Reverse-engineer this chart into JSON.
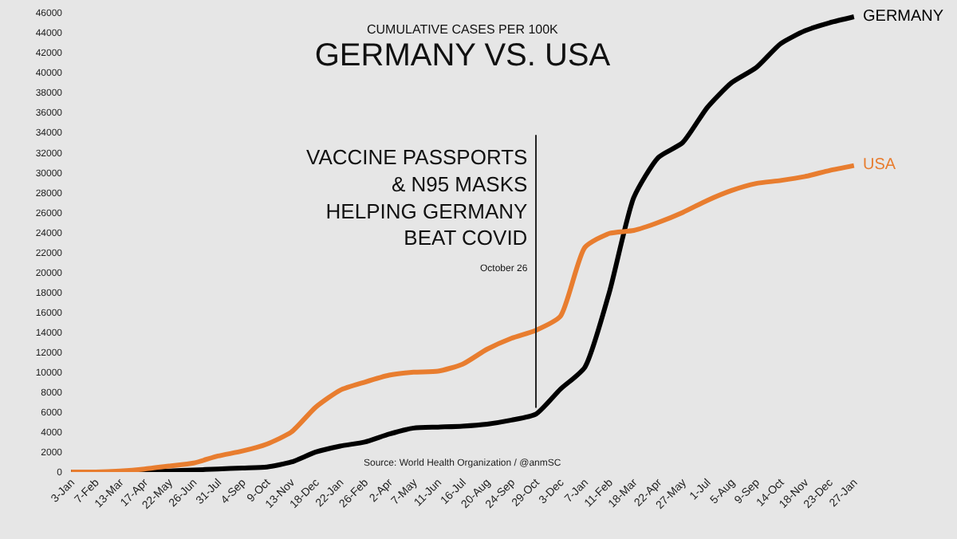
{
  "chart_data": {
    "type": "line",
    "title": "GERMANY VS. USA",
    "subtitle": "CUMULATIVE CASES PER 100K",
    "categories": [
      "3-Jan",
      "7-Feb",
      "13-Mar",
      "17-Apr",
      "22-May",
      "26-Jun",
      "31-Jul",
      "4-Sep",
      "9-Oct",
      "13-Nov",
      "18-Dec",
      "22-Jan",
      "26-Feb",
      "2-Apr",
      "7-May",
      "11-Jun",
      "16-Jul",
      "20-Aug",
      "24-Sep",
      "29-Oct",
      "3-Dec",
      "7-Jan",
      "11-Feb",
      "18-Mar",
      "22-Apr",
      "27-May",
      "1-Jul",
      "5-Aug",
      "9-Sep",
      "14-Oct",
      "18-Nov",
      "23-Dec",
      "27-Jan"
    ],
    "series": [
      {
        "name": "GERMANY",
        "color": "#000000",
        "values": [
          0,
          0,
          0,
          0,
          100,
          200,
          300,
          400,
          500,
          1000,
          2000,
          2600,
          3000,
          3800,
          4400,
          4500,
          4600,
          4800,
          5200,
          5800,
          8300,
          10500,
          18000,
          27500,
          31500,
          33000,
          36500,
          39000,
          40500,
          42900,
          44200,
          45000,
          45600
        ]
      },
      {
        "name": "USA",
        "color": "#e87d2f",
        "values": [
          0,
          0,
          100,
          300,
          600,
          900,
          1600,
          2100,
          2800,
          4000,
          6500,
          8200,
          9000,
          9700,
          10000,
          10100,
          10800,
          12300,
          13400,
          14200,
          15600,
          22500,
          23900,
          24200,
          25000,
          26000,
          27200,
          28200,
          28900,
          29200,
          29600,
          30200,
          30700
        ]
      }
    ],
    "ylim": [
      0,
      46000
    ],
    "yticks": [
      0,
      2000,
      4000,
      6000,
      8000,
      10000,
      12000,
      14000,
      16000,
      18000,
      20000,
      22000,
      24000,
      26000,
      28000,
      30000,
      32000,
      34000,
      36000,
      38000,
      40000,
      42000,
      44000,
      46000
    ],
    "grid": false,
    "legend": false,
    "marker": "none",
    "line_style": "solid",
    "annotations": [
      {
        "text": "VACCINE PASSPORTS\n& N95 MASKS\nHELPING GERMANY\nBEAT COVID",
        "x": "29-Oct",
        "y": 5800
      },
      "October 26",
      "Source: World Health Organization / @anmSC"
    ]
  }
}
